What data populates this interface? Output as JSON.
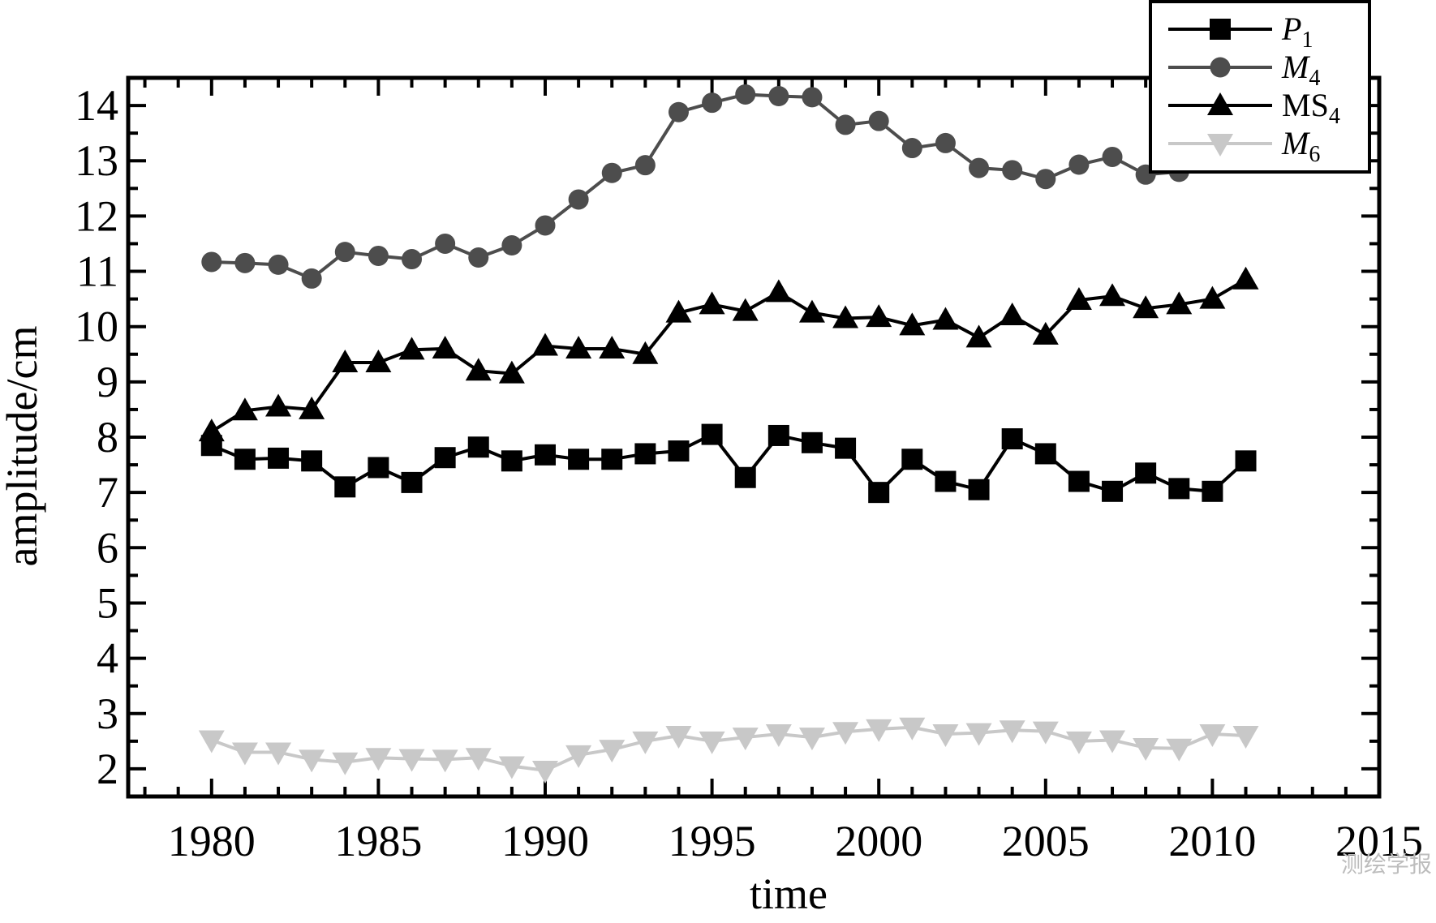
{
  "chart_data": {
    "type": "line",
    "xlabel": "time",
    "ylabel": "amplitude/cm",
    "xlim": [
      1977.5,
      2015
    ],
    "ylim": [
      1.5,
      14.5
    ],
    "xticks": [
      1980,
      1985,
      1990,
      1995,
      2000,
      2005,
      2010,
      2015
    ],
    "yticks": [
      2,
      3,
      4,
      5,
      6,
      7,
      8,
      9,
      10,
      11,
      12,
      13,
      14
    ],
    "grid": false,
    "legend_position": "top-right",
    "x": [
      1980,
      1981,
      1982,
      1983,
      1984,
      1985,
      1986,
      1987,
      1988,
      1989,
      1990,
      1991,
      1992,
      1993,
      1994,
      1995,
      1996,
      1997,
      1998,
      1999,
      2000,
      2001,
      2002,
      2003,
      2004,
      2005,
      2006,
      2007,
      2008,
      2009,
      2010,
      2011
    ],
    "series": [
      {
        "name_main": "P",
        "name_sub": "1",
        "italic": true,
        "marker": "square",
        "color": "#000000",
        "values": [
          7.85,
          7.6,
          7.62,
          7.57,
          7.1,
          7.45,
          7.18,
          7.63,
          7.82,
          7.57,
          7.68,
          7.6,
          7.6,
          7.7,
          7.75,
          8.05,
          7.27,
          8.03,
          7.9,
          7.8,
          7.0,
          7.6,
          7.2,
          7.05,
          7.97,
          7.7,
          7.2,
          7.02,
          7.35,
          7.07,
          7.02,
          7.57
        ]
      },
      {
        "name_main": "M",
        "name_sub": "4",
        "italic": true,
        "marker": "circle",
        "color": "#4d4d4d",
        "values": [
          11.17,
          11.15,
          11.12,
          10.87,
          11.35,
          11.28,
          11.22,
          11.5,
          11.25,
          11.47,
          11.83,
          12.3,
          12.78,
          12.92,
          13.88,
          14.05,
          14.2,
          14.17,
          14.15,
          13.65,
          13.72,
          13.23,
          13.32,
          12.87,
          12.83,
          12.67,
          12.93,
          13.07,
          12.75,
          12.8,
          null,
          null
        ]
      },
      {
        "name_main": "MS",
        "name_sub": "4",
        "italic": false,
        "marker": "triangle-up",
        "color": "#000000",
        "values": [
          8.1,
          8.48,
          8.55,
          8.5,
          9.35,
          9.35,
          9.58,
          9.6,
          9.2,
          9.15,
          9.65,
          9.6,
          9.6,
          9.5,
          10.25,
          10.4,
          10.28,
          10.62,
          10.25,
          10.15,
          10.17,
          10.02,
          10.12,
          9.8,
          10.2,
          9.85,
          10.48,
          10.55,
          10.33,
          10.4,
          10.5,
          10.85
        ]
      },
      {
        "name_main": "M",
        "name_sub": "6",
        "italic": true,
        "marker": "triangle-down",
        "color": "#c8c8c8",
        "values": [
          2.52,
          2.3,
          2.3,
          2.17,
          2.12,
          2.2,
          2.18,
          2.17,
          2.2,
          2.05,
          1.97,
          2.25,
          2.35,
          2.5,
          2.6,
          2.5,
          2.57,
          2.63,
          2.57,
          2.67,
          2.72,
          2.75,
          2.63,
          2.65,
          2.7,
          2.68,
          2.5,
          2.52,
          2.38,
          2.37,
          2.63,
          2.6
        ]
      }
    ]
  },
  "watermark": "测绘学报"
}
